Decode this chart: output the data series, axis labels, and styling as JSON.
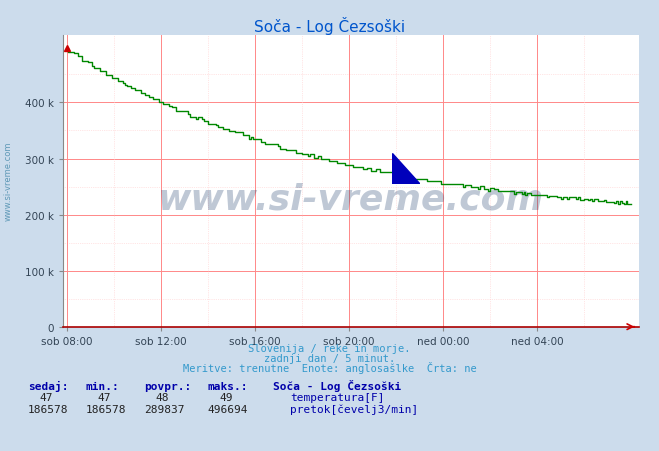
{
  "title": "Soča - Log Čezsoški",
  "title_color": "#0055cc",
  "bg_color": "#ccdcec",
  "plot_bg_color": "#ffffff",
  "grid_color_major": "#ff8888",
  "grid_color_minor": "#ffcccc",
  "xlabel_ticks": [
    "sob 08:00",
    "sob 12:00",
    "sob 16:00",
    "sob 20:00",
    "ned 00:00",
    "ned 04:00"
  ],
  "ylim": [
    0,
    520000
  ],
  "ytick_values": [
    0,
    100000,
    200000,
    300000,
    400000
  ],
  "ytick_labels": [
    "0",
    "100 k",
    "200 k",
    "300 k",
    "400 k"
  ],
  "xtick_positions": [
    0,
    48,
    96,
    144,
    192,
    240
  ],
  "n_points": 289,
  "flow_max": 496694,
  "flow_min": 186578,
  "line_color_flow": "#008800",
  "watermark": "www.si-vreme.com",
  "watermark_color": "#1a3a6a",
  "watermark_alpha": 0.28,
  "watermark_fontsize": 26,
  "footer_color": "#3399cc",
  "footer_lines": [
    "Slovenija / reke in morje.",
    "zadnji dan / 5 minut.",
    "Meritve: trenutne  Enote: anglosašlke  Črta: ne"
  ],
  "table_header_color": "#0000aa",
  "table_value_color": "#222222",
  "left_label": "www.si-vreme.com",
  "left_label_color": "#4488aa"
}
